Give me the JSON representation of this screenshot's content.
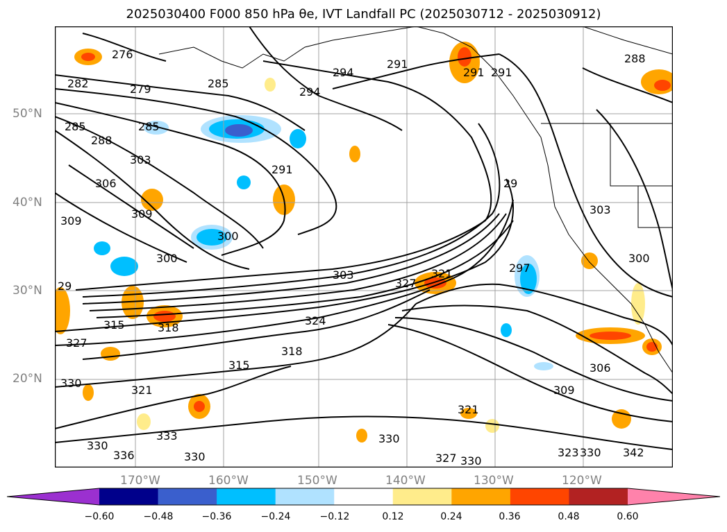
{
  "title": "2025030400 F000 850 hPa θe, IVT Landfall PC (2025030712 - 2025030912)",
  "colors": {
    "contour": "#000000",
    "grid": "#a0a0a0",
    "coast": "#000000",
    "frame": "#000000"
  },
  "map": {
    "lat_labels": [
      "50°N",
      "40°N",
      "30°N",
      "20°N"
    ],
    "lon_labels": [
      "170°W",
      "160°W",
      "150°W",
      "140°W",
      "130°W",
      "120°W"
    ],
    "contour_labels": [
      "276",
      "282",
      "279",
      "285",
      "288",
      "285",
      "294",
      "291",
      "294",
      "291",
      "288",
      "285",
      "303",
      "306",
      "309",
      "309",
      "291",
      "300",
      "300",
      "303",
      "297",
      "303",
      "300",
      "29",
      "315",
      "318",
      "327",
      "324",
      "318",
      "321",
      "315",
      "330",
      "321",
      "327",
      "333",
      "330",
      "336",
      "330",
      "330",
      "306",
      "309",
      "321",
      "327",
      "330",
      "342",
      "323",
      "330",
      "291",
      "29"
    ],
    "colorbar": {
      "colors": [
        "#9b30d0",
        "#00008b",
        "#3a5fcd",
        "#00bfff",
        "#b0e2ff",
        "#ffffff",
        "#ffec8b",
        "#ffa500",
        "#ff4500",
        "#b22222",
        "#ff82ab"
      ],
      "labels": [
        "−0.60",
        "−0.48",
        "−0.36",
        "−0.24",
        "−0.12",
        "0.12",
        "0.24",
        "0.36",
        "0.48",
        "0.60"
      ]
    },
    "features": [
      "850 hPa θe contours",
      "IVT landfall PC shading",
      "coastlines",
      "state/country borders",
      "lat/lon grid"
    ]
  }
}
